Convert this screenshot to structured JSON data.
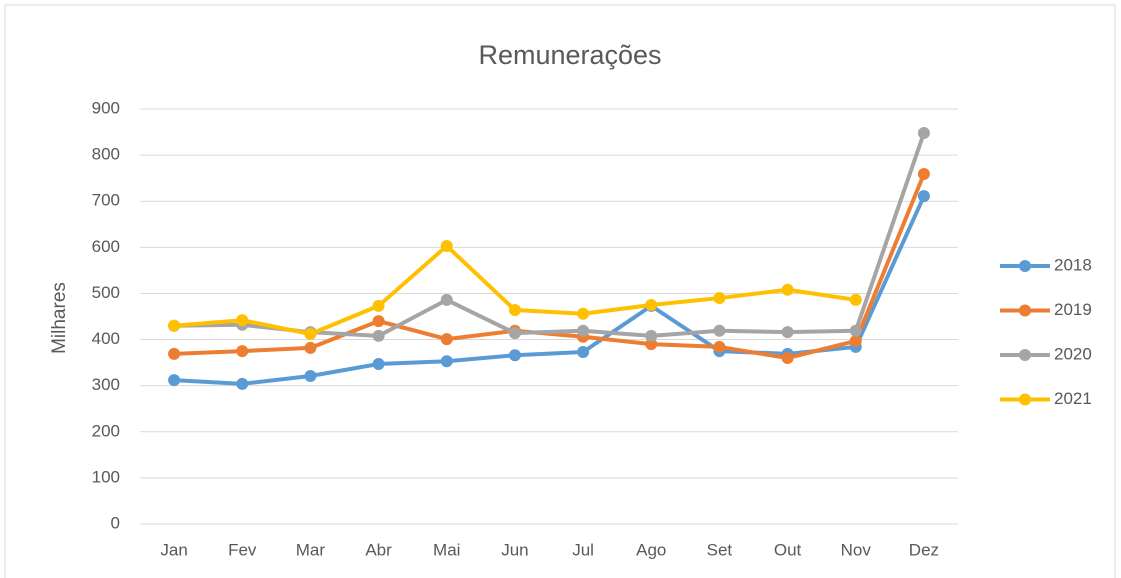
{
  "chart_data": {
    "type": "line",
    "title": "Remunerações",
    "y_label": "Milhares",
    "categories": [
      "Jan",
      "Fev",
      "Mar",
      "Abr",
      "Mai",
      "Jun",
      "Jul",
      "Ago",
      "Set",
      "Out",
      "Nov",
      "Dez"
    ],
    "series": [
      {
        "name": "2018",
        "color": "#5b9bd5",
        "values": [
          312,
          304,
          321,
          347,
          353,
          366,
          373,
          473,
          375,
          369,
          384,
          711
        ]
      },
      {
        "name": "2019",
        "color": "#ed7d31",
        "values": [
          369,
          375,
          382,
          440,
          401,
          419,
          406,
          390,
          384,
          360,
          397,
          759
        ]
      },
      {
        "name": "2020",
        "color": "#a5a5a5",
        "values": [
          430,
          432,
          416,
          408,
          486,
          414,
          419,
          408,
          419,
          416,
          419,
          848
        ]
      },
      {
        "name": "2021",
        "color": "#ffc000",
        "values": [
          430,
          442,
          412,
          473,
          603,
          464,
          456,
          475,
          490,
          508,
          486,
          null
        ]
      }
    ],
    "ylim": [
      0,
      900
    ],
    "yticks": [
      0,
      100,
      200,
      300,
      400,
      500,
      600,
      700,
      800,
      900
    ],
    "grid": true,
    "legend": "right"
  }
}
